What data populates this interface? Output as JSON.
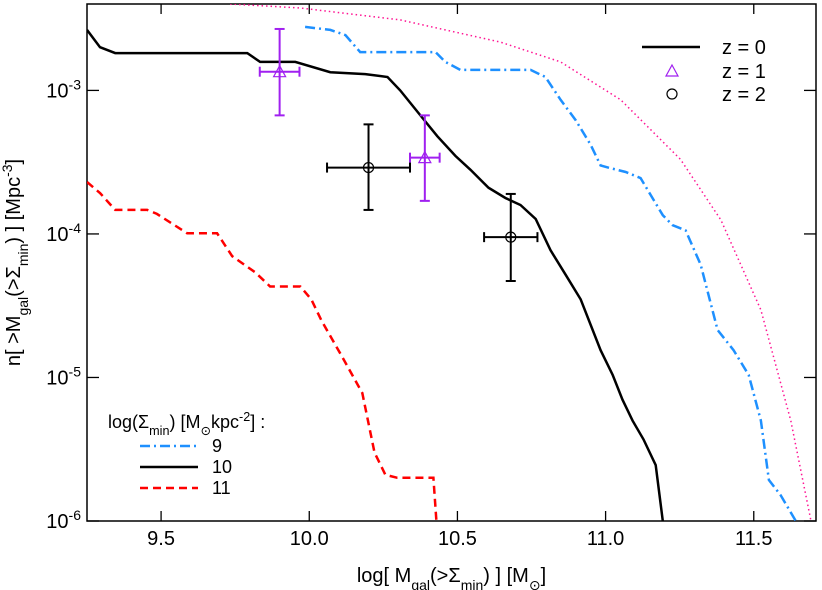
{
  "chart_data": {
    "type": "line",
    "xlabel": [
      {
        "text": "log[ M"
      },
      {
        "text": "gal",
        "shift": "sub"
      },
      {
        "text": "(>Σ"
      },
      {
        "text": "min",
        "shift": "sub"
      },
      {
        "text": ") ]   [M"
      },
      {
        "text": "⊙",
        "shift": "sub"
      },
      {
        "text": "]"
      }
    ],
    "ylabel": [
      {
        "text": "n[ >M"
      },
      {
        "text": "gal",
        "shift": "sub"
      },
      {
        "text": "(>Σ"
      },
      {
        "text": "min",
        "shift": "sub"
      },
      {
        "text": ") ]  [Mpc"
      },
      {
        "text": "-3",
        "shift": "super"
      },
      {
        "text": "]"
      }
    ],
    "legend_title": [
      {
        "text": "log(Σ"
      },
      {
        "text": "min",
        "shift": "sub"
      },
      {
        "text": ") [M"
      },
      {
        "text": "⊙",
        "shift": "sub"
      },
      {
        "text": "kpc"
      },
      {
        "text": "-2",
        "shift": "super"
      },
      {
        "text": "] :"
      }
    ],
    "xlim": [
      9.25,
      11.71
    ],
    "ylim": [
      1e-06,
      0.004
    ],
    "log_y": true,
    "xticks": [
      9.5,
      {
        "value": 10,
        "label": "10.0"
      },
      10.5,
      {
        "value": 11,
        "label": "11.0"
      },
      11.5
    ],
    "yticks": [
      {
        "value": 0.001,
        "label": "10",
        "exponent": "-3"
      },
      {
        "value": 0.0001,
        "label": "10",
        "exponent": "-4"
      },
      {
        "value": 1e-05,
        "label": "10",
        "exponent": "-5"
      },
      {
        "value": 1e-06,
        "label": "10",
        "exponent": "-6"
      }
    ],
    "series": [
      {
        "name": "9",
        "color": "#1e90ff",
        "style": "dashdot",
        "x": [
          9.986,
          10.071,
          10.122,
          10.172,
          10.291,
          10.426,
          10.459,
          10.51,
          10.747,
          10.797,
          10.848,
          10.899,
          10.949,
          10.983,
          11.017,
          11.068,
          11.118,
          11.152,
          11.193,
          11.226,
          11.27,
          11.321,
          11.378,
          11.432,
          11.483,
          11.524,
          11.551,
          11.591,
          11.642
        ],
        "y": [
          0.00277,
          0.00264,
          0.00243,
          0.00185,
          0.00185,
          0.00185,
          0.00158,
          0.00139,
          0.00139,
          0.00124,
          0.00086,
          0.00062,
          0.00042,
          0.0003,
          0.000287,
          0.00027,
          0.000245,
          0.000187,
          0.000135,
          0.000115,
          0.000106,
          6.1e-05,
          2.14e-05,
          1.55e-05,
          1.04e-05,
          5e-06,
          1.93e-06,
          1.51e-06,
          1e-06
        ]
      },
      {
        "name": "10",
        "color": "#000000",
        "style": "solid",
        "x": [
          9.25,
          9.294,
          9.345,
          9.632,
          9.791,
          9.834,
          9.953,
          10.071,
          10.189,
          10.264,
          10.307,
          10.375,
          10.432,
          10.493,
          10.544,
          10.605,
          10.662,
          10.713,
          10.764,
          10.814,
          10.865,
          10.916,
          10.983,
          11.024,
          11.057,
          11.091,
          11.128,
          11.169,
          11.193,
          11.2
        ],
        "y": [
          0.00264,
          0.002,
          0.00182,
          0.00182,
          0.00182,
          0.00158,
          0.00158,
          0.00134,
          0.0013,
          0.00124,
          0.001,
          0.00067,
          0.00048,
          0.00035,
          0.00028,
          0.00021,
          0.000178,
          0.000159,
          0.000127,
          7.7e-05,
          5.2e-05,
          3.5e-05,
          1.55e-05,
          1.04e-05,
          7e-06,
          5e-06,
          3.7e-06,
          2.45e-06,
          1e-06,
          9e-07
        ]
      },
      {
        "name": "11",
        "color": "#ff0000",
        "style": "dashed",
        "x": [
          9.25,
          9.294,
          9.345,
          9.453,
          9.486,
          9.588,
          9.689,
          9.74,
          9.818,
          9.868,
          9.97,
          10.007,
          10.041,
          10.111,
          10.179,
          10.22,
          10.257,
          10.297,
          10.368,
          10.419,
          10.429,
          10.43
        ],
        "y": [
          0.00023,
          0.000193,
          0.000147,
          0.000147,
          0.000138,
          0.000101,
          0.000101,
          7e-05,
          5.4e-05,
          4.3e-05,
          4.3e-05,
          3.5e-05,
          2.5e-05,
          1.39e-05,
          7.8e-06,
          3e-06,
          2.1e-06,
          2e-06,
          2e-06,
          2e-06,
          1e-06,
          9e-07
        ]
      },
      {
        "color": "#ff1493",
        "style": "dotted",
        "x": [
          9.733,
          9.97,
          10.307,
          10.645,
          10.848,
          11.051,
          11.253,
          11.389,
          11.524,
          11.625,
          11.693
        ],
        "y": [
          0.004,
          0.00375,
          0.0031,
          0.00217,
          0.00158,
          0.00086,
          0.00033,
          0.000125,
          2.95e-05,
          5e-06,
          1e-06
        ]
      }
    ],
    "legend_line": {
      "name": "z = 0",
      "color": "#000000"
    },
    "points": [
      {
        "name": "z = 1",
        "marker": "triangle",
        "color": "#a020f0",
        "x": [
          9.9,
          10.39
        ],
        "y": [
          0.00135,
          0.00034
        ],
        "ylow": [
          0.00067,
          0.00017
        ],
        "yhigh": [
          0.00268,
          0.00067
        ],
        "xerr": [
          0.067,
          0.05
        ]
      },
      {
        "name": "z = 2",
        "marker": "circle",
        "color": "#000000",
        "x": [
          10.2,
          10.68
        ],
        "y": [
          0.00029,
          9.5e-05
        ],
        "ylow": [
          0.000147,
          4.7e-05
        ],
        "yhigh": [
          0.00058,
          0.00019
        ],
        "xerr": [
          0.14,
          0.09
        ]
      }
    ]
  }
}
